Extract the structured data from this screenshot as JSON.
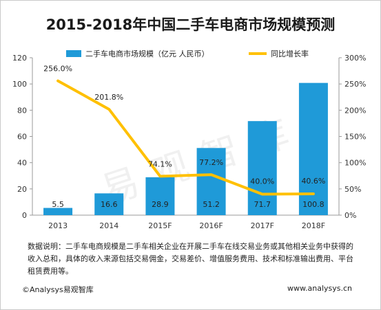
{
  "watermark": "易观智库",
  "note_text": "数据说明：二手车电商规模是二手车相关企业在开展二手车在线交易业务或其他相关业务中获得的收入总和，具体的收入来源包括交易佣金，交易差价、增值服务费用、技术和标准输出费用、平台租赁费用等。",
  "footer": {
    "source": "©Analysys易观智库",
    "url": "www.analysys.cn"
  },
  "colors": {
    "bar": "#1f9ad8",
    "line": "#ffc000"
  },
  "chart_data": {
    "type": "bar",
    "title": "2015-2018年中国二手车电商市场规模预测",
    "categories": [
      "2013",
      "2014",
      "2015F",
      "2016F",
      "2017F",
      "2018F"
    ],
    "series": [
      {
        "name": "二手车电商市场规模（亿元 人民币）",
        "type": "bar",
        "axis": "left",
        "values": [
          5.5,
          16.6,
          28.9,
          51.2,
          71.7,
          100.8
        ],
        "labels": [
          "5.5",
          "16.6",
          "28.9",
          "51.2",
          "71.7",
          "100.8"
        ]
      },
      {
        "name": "同比增长率",
        "type": "line",
        "axis": "right",
        "values": [
          256.0,
          201.8,
          74.1,
          77.2,
          40.0,
          40.6
        ],
        "labels": [
          "256.0%",
          "201.8%",
          "74.1%",
          "77.2%",
          "40.0%",
          "40.6%"
        ]
      }
    ],
    "y_left": {
      "range": [
        0,
        120
      ],
      "ticks": [
        "0",
        "20",
        "40",
        "60",
        "80",
        "100",
        "120"
      ]
    },
    "y_right": {
      "range": [
        0,
        300
      ],
      "ticks": [
        "0%",
        "50%",
        "100%",
        "150%",
        "200%",
        "250%",
        "300%"
      ]
    },
    "legend_position": "top",
    "grid": false
  }
}
